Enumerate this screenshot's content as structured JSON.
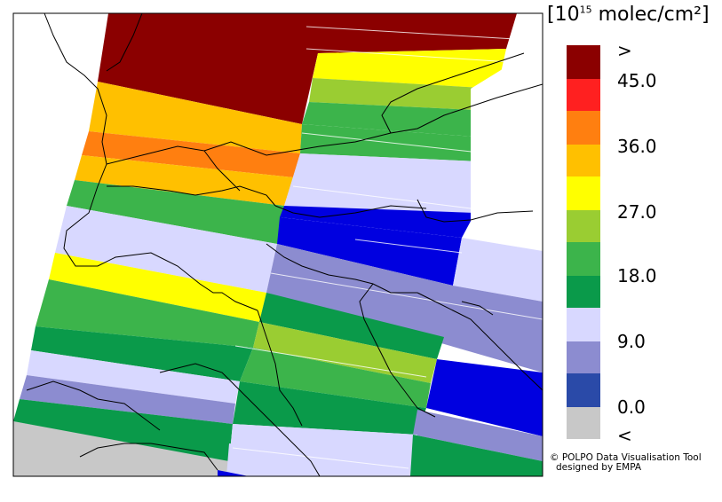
{
  "legend": {
    "title_prefix": "[10",
    "title_exp": "15",
    "title_suffix": " molec/cm²]",
    "ticks": [
      ">",
      "45.0",
      "36.0",
      "27.0",
      "18.0",
      "9.0",
      "0.0",
      "<"
    ],
    "colors": [
      "#8b0000",
      "#ff2020",
      "#ff7f10",
      "#ffc000",
      "#ffff00",
      "#9acd32",
      "#3cb44b",
      "#0a9a4a",
      "#d8d8ff",
      "#8c8cd0",
      "#2a4aa8",
      "#c8c8c8"
    ]
  },
  "credit": {
    "line1": "© POLPO Data Visualisation Tool",
    "line2": "designed by EMPA"
  }
}
